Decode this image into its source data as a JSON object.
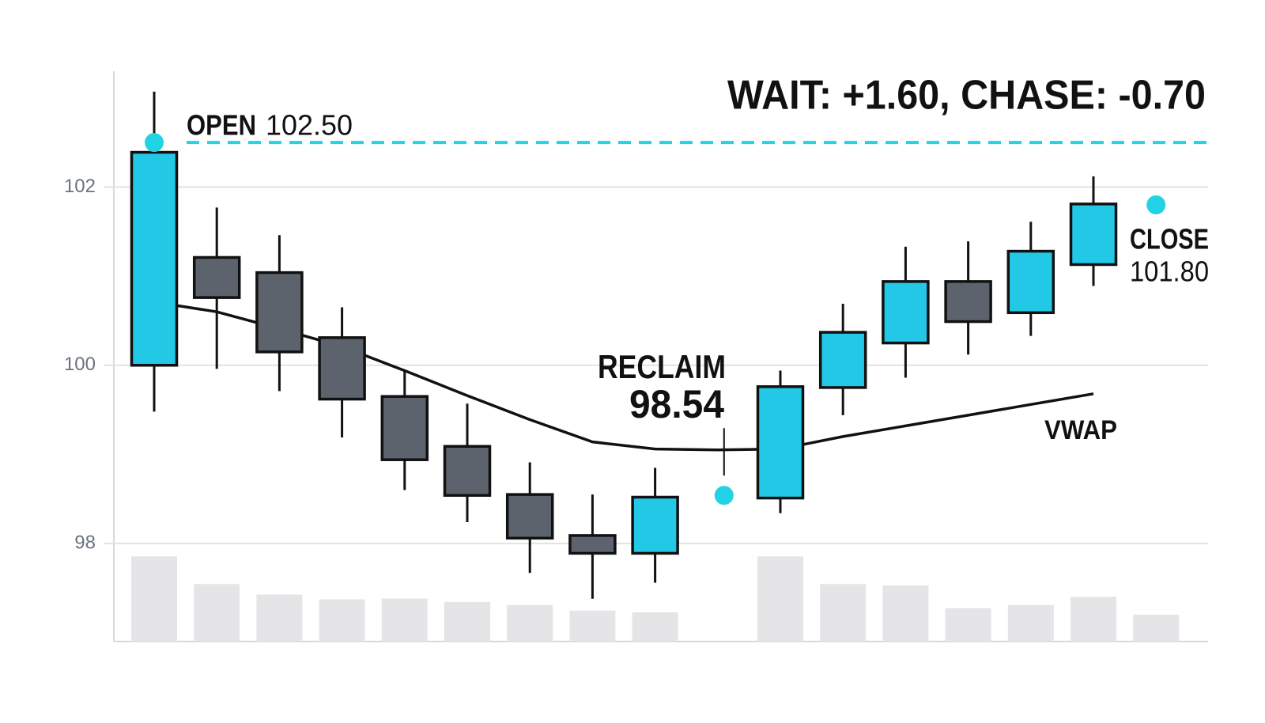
{
  "chart_data": {
    "type": "candlestick",
    "title": "WAIT: +1.60, CHASE: -0.70",
    "categories": [
      null,
      null,
      null,
      null,
      null,
      null,
      null,
      null,
      null,
      null,
      null,
      null,
      null,
      null,
      null,
      null,
      null
    ],
    "open": [
      100.0,
      101.21,
      101.04,
      100.31,
      99.65,
      99.09,
      98.55,
      98.09,
      97.89,
      null,
      98.51,
      99.75,
      100.25,
      100.94,
      100.59,
      101.13,
      null
    ],
    "high": [
      103.07,
      101.77,
      101.46,
      100.65,
      99.94,
      99.57,
      98.91,
      98.55,
      98.85,
      null,
      99.94,
      100.69,
      101.33,
      101.39,
      101.61,
      102.12,
      null
    ],
    "low": [
      99.48,
      99.96,
      99.71,
      99.19,
      98.6,
      98.24,
      97.67,
      97.38,
      97.56,
      null,
      98.34,
      99.44,
      99.86,
      100.12,
      100.33,
      100.89,
      null
    ],
    "close": [
      102.39,
      100.76,
      100.15,
      99.62,
      98.94,
      98.54,
      98.06,
      97.89,
      98.52,
      null,
      99.76,
      100.37,
      100.94,
      100.49,
      101.28,
      101.81,
      null
    ],
    "up_color": "#22c8e6",
    "down_color": "#5d636d",
    "series": [
      {
        "name": "VWAP",
        "color": "#111111",
        "values": [
          100.71,
          100.6,
          100.41,
          100.21,
          99.94,
          99.66,
          99.39,
          99.14,
          99.06,
          99.05,
          99.06,
          99.2,
          99.32,
          99.44,
          99.56,
          99.68,
          null
        ]
      }
    ],
    "volume": {
      "color": "#e5e5e7",
      "y2lim": [
        0,
        120
      ],
      "values": [
        105,
        71,
        58,
        52,
        53,
        49,
        45,
        38,
        36,
        null,
        105,
        71,
        69,
        41,
        45,
        55,
        33
      ]
    },
    "markers": [
      {
        "name": "OPEN",
        "x": 0,
        "value": 102.5,
        "value_label": "102.50",
        "line": "dashed"
      },
      {
        "name": "RECLAIM",
        "x": 9,
        "value": 98.54
      },
      {
        "name": "CLOSE",
        "x": 16,
        "value": 101.8,
        "value_label": "101.80"
      }
    ],
    "marker_color": "#22d3e6",
    "ylim": [
      96.9,
      103.3
    ],
    "yticks": [
      98,
      100,
      102
    ],
    "grid": true
  }
}
